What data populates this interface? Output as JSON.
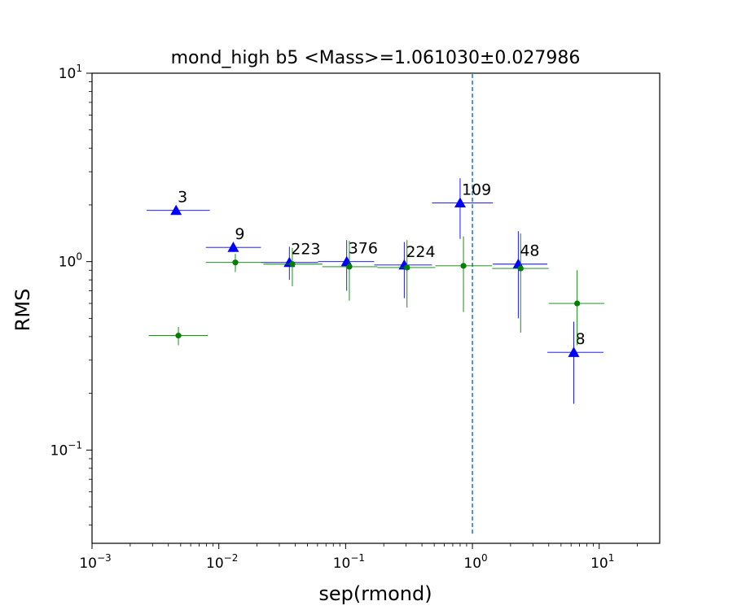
{
  "chart_data": {
    "type": "scatter",
    "title": "mond_high b5 <Mass>=1.061030±0.027986",
    "xlabel": "sep(rmond)",
    "ylabel": "RMS",
    "xscale": "log",
    "yscale": "log",
    "xlim": [
      0.001,
      30
    ],
    "ylim": [
      0.032,
      10
    ],
    "grid": false,
    "xticks": [
      {
        "value": 0.001,
        "base": "10",
        "exp": "−3"
      },
      {
        "value": 0.01,
        "base": "10",
        "exp": "−2"
      },
      {
        "value": 0.1,
        "base": "10",
        "exp": "−1"
      },
      {
        "value": 1,
        "base": "10",
        "exp": "0"
      },
      {
        "value": 10,
        "base": "10",
        "exp": "1"
      }
    ],
    "yticks": [
      {
        "value": 0.1,
        "base": "10",
        "exp": "−1"
      },
      {
        "value": 1,
        "base": "10",
        "exp": "0"
      },
      {
        "value": 10,
        "base": "10",
        "exp": "1"
      }
    ],
    "vline": {
      "x": 1.0,
      "ymin": 0.036,
      "ymax": 10,
      "color": "#1f77b4",
      "style": "dashed"
    },
    "series": [
      {
        "marker": "triangle",
        "color": "#0000ff",
        "points": [
          {
            "x": 0.0046,
            "y": 1.87,
            "xlo": 0.0027,
            "xhi": 0.0085,
            "ylo": 1.87,
            "yhi": 1.87,
            "label": "3"
          },
          {
            "x": 0.013,
            "y": 1.19,
            "xlo": 0.0079,
            "xhi": 0.0215,
            "ylo": 1.19,
            "yhi": 1.19,
            "label": "9"
          },
          {
            "x": 0.036,
            "y": 0.99,
            "xlo": 0.0215,
            "xhi": 0.0605,
            "ylo": 0.8,
            "yhi": 1.2,
            "label": "223"
          },
          {
            "x": 0.102,
            "y": 1.0,
            "xlo": 0.0605,
            "xhi": 0.168,
            "ylo": 0.7,
            "yhi": 1.3,
            "label": "376"
          },
          {
            "x": 0.29,
            "y": 0.96,
            "xlo": 0.168,
            "xhi": 0.48,
            "ylo": 0.64,
            "yhi": 1.27,
            "label": "224"
          },
          {
            "x": 0.8,
            "y": 2.05,
            "xlo": 0.48,
            "xhi": 1.45,
            "ylo": 1.32,
            "yhi": 2.77,
            "label": "109"
          },
          {
            "x": 2.3,
            "y": 0.97,
            "xlo": 1.45,
            "xhi": 3.9,
            "ylo": 0.5,
            "yhi": 1.45,
            "label": "48"
          },
          {
            "x": 6.3,
            "y": 0.33,
            "xlo": 3.9,
            "xhi": 10.8,
            "ylo": 0.176,
            "yhi": 0.48,
            "label": "8"
          }
        ]
      },
      {
        "marker": "circle",
        "color": "#008000",
        "points": [
          {
            "x": 0.0048,
            "y": 0.405,
            "xlo": 0.0028,
            "xhi": 0.0082,
            "ylo": 0.36,
            "yhi": 0.45
          },
          {
            "x": 0.0135,
            "y": 0.99,
            "xlo": 0.0079,
            "xhi": 0.0225,
            "ylo": 0.88,
            "yhi": 1.1
          },
          {
            "x": 0.038,
            "y": 0.97,
            "xlo": 0.0225,
            "xhi": 0.0655,
            "ylo": 0.74,
            "yhi": 1.18
          },
          {
            "x": 0.107,
            "y": 0.94,
            "xlo": 0.0655,
            "xhi": 0.178,
            "ylo": 0.62,
            "yhi": 1.29
          },
          {
            "x": 0.305,
            "y": 0.93,
            "xlo": 0.178,
            "xhi": 0.51,
            "ylo": 0.57,
            "yhi": 1.3
          },
          {
            "x": 0.85,
            "y": 0.95,
            "xlo": 0.51,
            "xhi": 1.43,
            "ylo": 0.54,
            "yhi": 1.36
          },
          {
            "x": 2.4,
            "y": 0.92,
            "xlo": 1.43,
            "xhi": 4.0,
            "ylo": 0.42,
            "yhi": 1.41
          },
          {
            "x": 6.7,
            "y": 0.6,
            "xlo": 4.0,
            "xhi": 11.0,
            "ylo": 0.36,
            "yhi": 0.9
          }
        ]
      }
    ]
  }
}
